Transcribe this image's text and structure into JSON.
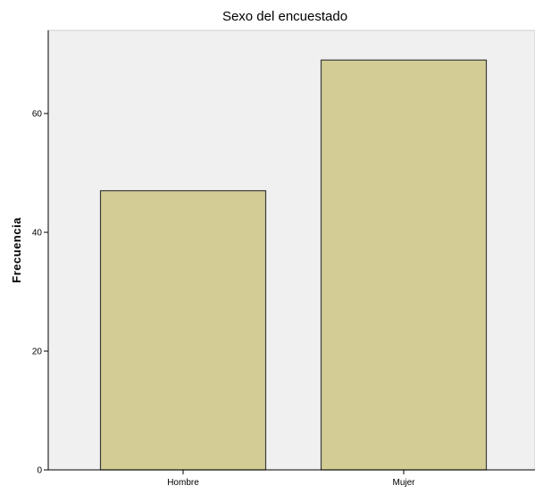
{
  "chart_data": {
    "type": "bar",
    "title": "Sexo del encuestado",
    "xlabel": "",
    "ylabel": "Frecuencia",
    "categories": [
      "Hombre",
      "Mujer"
    ],
    "values": [
      47,
      69
    ],
    "ylim": [
      0,
      74
    ],
    "yticks": [
      "0",
      "20",
      "40",
      "60"
    ],
    "grid": false,
    "legend": "none",
    "colors": {
      "bar_fill": "#d3cd95",
      "bar_stroke": "#3b3b3b",
      "plot_background": "#f0f0f0",
      "axis": "#000000"
    }
  }
}
